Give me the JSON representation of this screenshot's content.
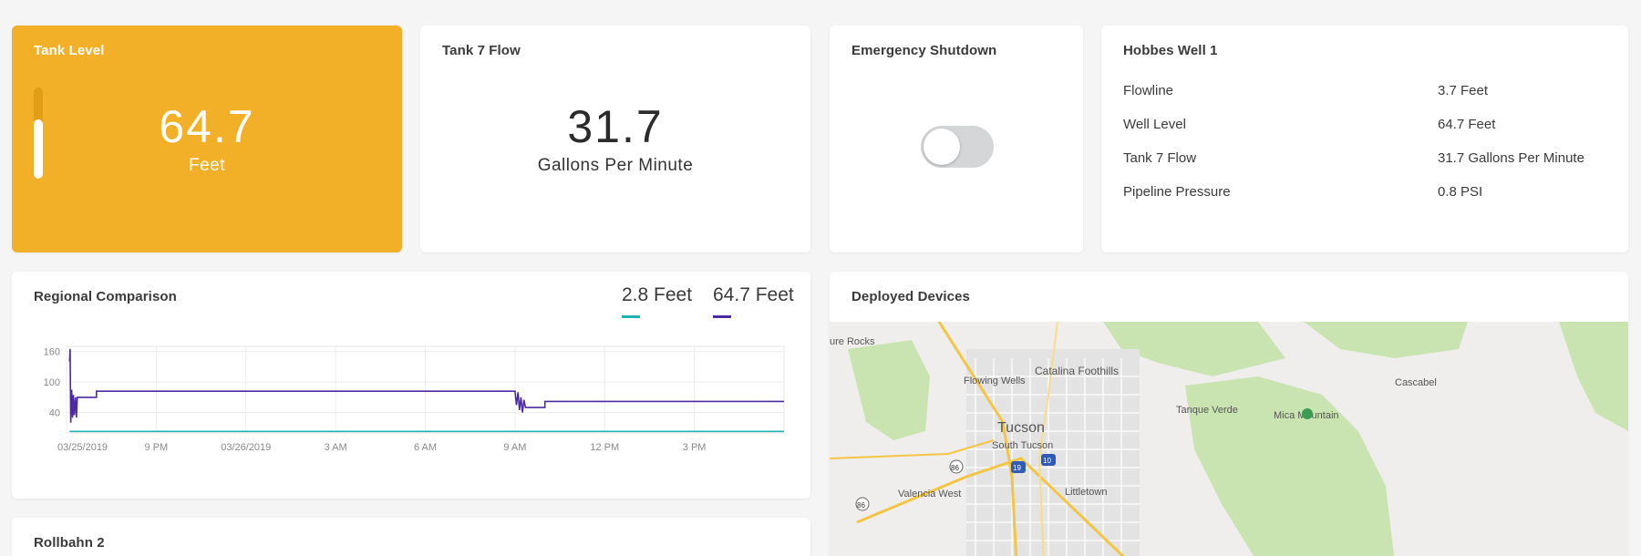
{
  "tank_level": {
    "title": "Tank Level",
    "value": "64.7",
    "unit": "Feet",
    "fill_fraction": 0.65,
    "color": "#f2b029"
  },
  "tank_flow": {
    "title": "Tank 7 Flow",
    "value": "31.7",
    "unit": "Gallons Per Minute"
  },
  "shutdown": {
    "title": "Emergency Shutdown",
    "state": "off"
  },
  "well": {
    "title": "Hobbes Well 1",
    "rows": [
      {
        "key": "Flowline",
        "value": "3.7 Feet"
      },
      {
        "key": "Well Level",
        "value": "64.7 Feet"
      },
      {
        "key": "Tank 7 Flow",
        "value": "31.7 Gallons Per Minute"
      },
      {
        "key": "Pipeline Pressure",
        "value": "0.8 PSI"
      }
    ]
  },
  "regional": {
    "title": "Regional Comparison",
    "legend": [
      {
        "label": "2.8 Feet",
        "color": "#1fb3b3"
      },
      {
        "label": "64.7 Feet",
        "color": "#4b2aa3"
      }
    ]
  },
  "chart_data": {
    "type": "line",
    "title": "Regional Comparison",
    "xlabel": "",
    "ylabel": "",
    "ylim": [
      0,
      170
    ],
    "xlim_hours": [
      0,
      24
    ],
    "yticks": [
      40,
      100,
      160
    ],
    "xticks": [
      {
        "h": 0,
        "label": "03/25/2019"
      },
      {
        "h": 3,
        "label": "9 PM"
      },
      {
        "h": 6,
        "label": "03/26/2019"
      },
      {
        "h": 9,
        "label": "3 AM"
      },
      {
        "h": 12,
        "label": "6 AM"
      },
      {
        "h": 15,
        "label": "9 AM"
      },
      {
        "h": 18,
        "label": "12 PM"
      },
      {
        "h": 21,
        "label": "3 PM"
      }
    ],
    "grid": true,
    "series": [
      {
        "name": "64.7 Feet",
        "color": "#4b2aa3",
        "points": [
          [
            0.1,
            140
          ],
          [
            0.12,
            165
          ],
          [
            0.14,
            20
          ],
          [
            0.17,
            85
          ],
          [
            0.2,
            30
          ],
          [
            0.23,
            75
          ],
          [
            0.26,
            35
          ],
          [
            0.3,
            70
          ],
          [
            0.33,
            30
          ],
          [
            0.36,
            70
          ],
          [
            0.5,
            70
          ],
          [
            1.0,
            70
          ],
          [
            1.0,
            82
          ],
          [
            15.0,
            82
          ],
          [
            15.05,
            55
          ],
          [
            15.1,
            80
          ],
          [
            15.15,
            45
          ],
          [
            15.2,
            70
          ],
          [
            15.25,
            40
          ],
          [
            15.3,
            65
          ],
          [
            15.35,
            50
          ],
          [
            16.0,
            50
          ],
          [
            16.0,
            62
          ],
          [
            24.0,
            62
          ]
        ]
      },
      {
        "name": "2.8 Feet",
        "color": "#1fb3b3",
        "points": [
          [
            0.1,
            3
          ],
          [
            24.0,
            3
          ]
        ]
      }
    ]
  },
  "devices": {
    "title": "Deployed Devices",
    "map_labels": [
      "ure Rocks",
      "Catalina Foothills",
      "Flowing Wells",
      "Tucson",
      "South Tucson",
      "Tanque Verde",
      "Mica Mountain",
      "Cascabel",
      "Valencia West",
      "Littletown",
      "86",
      "19",
      "10"
    ]
  },
  "rollbahn": {
    "title": "Rollbahn 2"
  }
}
